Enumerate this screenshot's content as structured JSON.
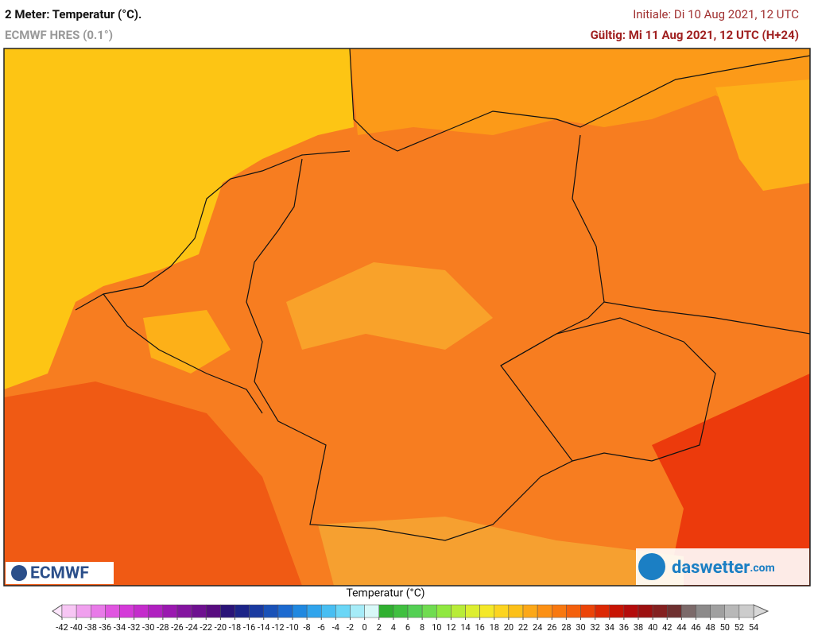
{
  "header": {
    "title": "2 Meter: Temperatur (°C).",
    "model": "ECMWF HRES (0.1°)",
    "initial": "Initiale: Di 10 Aug 2021, 12 UTC",
    "valid": "Gültig: Mi 11 Aug 2021, 12 UTC (H+24)"
  },
  "logos": {
    "left": "ECMWF",
    "right": "daswetter",
    "right_suffix": ".com"
  },
  "legend": {
    "title": "Temperatur (°C)",
    "ticks": [
      -42,
      -40,
      -38,
      -36,
      -34,
      -32,
      -30,
      -28,
      -26,
      -24,
      -22,
      -20,
      -18,
      -16,
      -14,
      -12,
      -10,
      -8,
      -6,
      -4,
      -2,
      0,
      2,
      4,
      6,
      8,
      10,
      12,
      14,
      16,
      18,
      20,
      22,
      24,
      26,
      28,
      30,
      32,
      34,
      36,
      38,
      40,
      42,
      44,
      46,
      48,
      50,
      52,
      54
    ],
    "colors": [
      "#f7c6f4",
      "#f0a0ee",
      "#e87ae8",
      "#e055e0",
      "#d43ad8",
      "#c42ccc",
      "#b020c0",
      "#9a18b0",
      "#8414a0",
      "#6e1090",
      "#580c80",
      "#2a1478",
      "#1c2488",
      "#1a3aa0",
      "#1a52b8",
      "#1c6ad0",
      "#2088e0",
      "#30a4ec",
      "#48bef2",
      "#6ad6f6",
      "#a6ecf8",
      "#d8f8f8",
      "#30b030",
      "#40c040",
      "#54d054",
      "#70dc50",
      "#90e840",
      "#b8ec38",
      "#dcee30",
      "#f4e828",
      "#fcd420",
      "#fcc018",
      "#fca818",
      "#fc9014",
      "#f87810",
      "#f4600c",
      "#ec4408",
      "#dc2804",
      "#c81404",
      "#b40c0c",
      "#9c1010",
      "#842020",
      "#6e3030",
      "#7c6a6a",
      "#8c8a8a",
      "#a0a0a0",
      "#b8b8b8",
      "#cccccc"
    ]
  }
}
